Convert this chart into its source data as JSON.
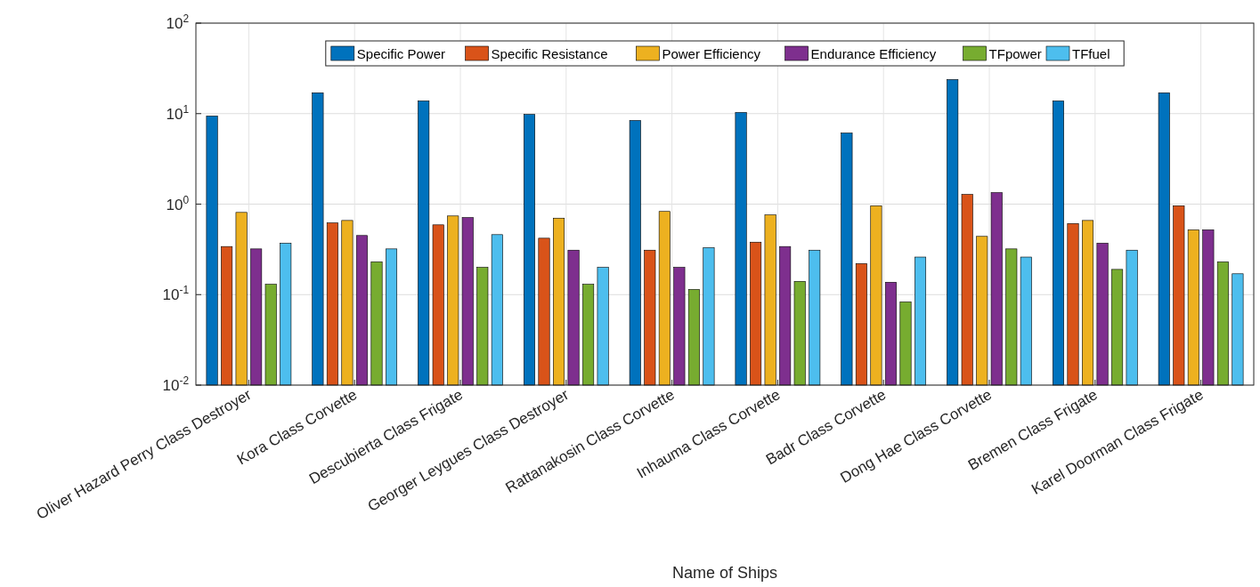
{
  "chart_data": {
    "type": "bar",
    "xlabel": "Name of Ships",
    "categories": [
      "Oliver Hazard Perry Class Destroyer",
      "Kora Class Corvette",
      "Descubierta Class Frigate",
      "Georger Leygues Class Destroyer",
      "Rattanakosin Class Corvette",
      "Inhauma Class Corvette",
      "Badr Class Corvette",
      "Dong Hae Class Corvette",
      "Bremen Class Frigate",
      "Karel Doorman Class Frigate"
    ],
    "series": [
      {
        "name": "Specific Power",
        "color": "#0072bd",
        "values": [
          9.4,
          17,
          13.8,
          9.8,
          8.4,
          10.3,
          6.1,
          23.8,
          13.8,
          17
        ]
      },
      {
        "name": "Specific Resistance",
        "color": "#d95319",
        "values": [
          0.34,
          0.62,
          0.59,
          0.42,
          0.31,
          0.38,
          0.22,
          1.28,
          0.61,
          0.96
        ]
      },
      {
        "name": "Power Efficiency",
        "color": "#edb120",
        "values": [
          0.81,
          0.66,
          0.74,
          0.7,
          0.83,
          0.76,
          0.96,
          0.44,
          0.66,
          0.52
        ]
      },
      {
        "name": "Endurance Efficiency",
        "color": "#7e2f8e",
        "values": [
          0.32,
          0.45,
          0.71,
          0.31,
          0.2,
          0.34,
          0.137,
          1.34,
          0.37,
          0.52
        ]
      },
      {
        "name": "TFpower",
        "color": "#77ac30",
        "values": [
          0.13,
          0.23,
          0.2,
          0.13,
          0.114,
          0.14,
          0.083,
          0.32,
          0.19,
          0.23
        ]
      },
      {
        "name": "TFfuel",
        "color": "#4dbeee",
        "values": [
          0.37,
          0.32,
          0.46,
          0.2,
          0.33,
          0.31,
          0.26,
          0.26,
          0.31,
          0.17
        ]
      }
    ],
    "log": true,
    "ylim": [
      0.01,
      100
    ],
    "yticks": [
      {
        "value": 0.01,
        "label": "10$^{-2}$"
      },
      {
        "value": 0.1,
        "label": "10$^{-1}$"
      },
      {
        "value": 1,
        "label": "10$^{0}$"
      },
      {
        "value": 10,
        "label": "10$^{1}$"
      },
      {
        "value": 100,
        "label": "10$^{2}$"
      }
    ],
    "grid": true,
    "legend": "top"
  }
}
